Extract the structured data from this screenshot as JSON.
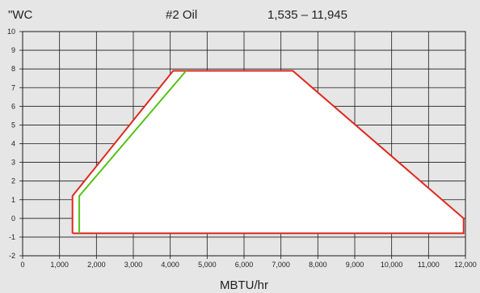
{
  "header": {
    "unit_label": "\"WC",
    "fuel_label": "#2 Oil",
    "range_label": "1,535 – 11,945"
  },
  "chart_data": {
    "type": "area",
    "title": "",
    "xlabel": "MBTU/hr",
    "ylabel": "\"WC",
    "xlim": [
      0,
      12000
    ],
    "ylim": [
      -2,
      10
    ],
    "x_ticks": [
      0,
      1000,
      2000,
      3000,
      4000,
      5000,
      6000,
      7000,
      8000,
      9000,
      10000,
      11000,
      12000
    ],
    "x_tick_labels": [
      "0",
      "1,000",
      "2,000",
      "3,000",
      "4,000",
      "5,000",
      "6,000",
      "7,000",
      "8,000",
      "9,000",
      "10,000",
      "11,000",
      "12,000"
    ],
    "y_ticks": [
      -2,
      -1,
      0,
      1,
      2,
      3,
      4,
      5,
      6,
      7,
      8,
      9,
      10
    ],
    "y_tick_labels": [
      "-2",
      "-1",
      "0",
      "1",
      "2",
      "3",
      "4",
      "5",
      "6",
      "7",
      "8",
      "9",
      "10"
    ],
    "grid": true,
    "series": [
      {
        "color": "#dd2a1f",
        "fill": "#ffffff",
        "points": [
          [
            1350,
            -0.8
          ],
          [
            1350,
            1.2
          ],
          [
            4080,
            7.9
          ],
          [
            7320,
            7.9
          ],
          [
            11950,
            0.0
          ],
          [
            11950,
            -0.8
          ],
          [
            1350,
            -0.8
          ]
        ]
      },
      {
        "color": "#55c21a",
        "points": [
          [
            1535,
            -0.8
          ],
          [
            1535,
            1.2
          ],
          [
            4430,
            7.9
          ]
        ]
      }
    ]
  }
}
